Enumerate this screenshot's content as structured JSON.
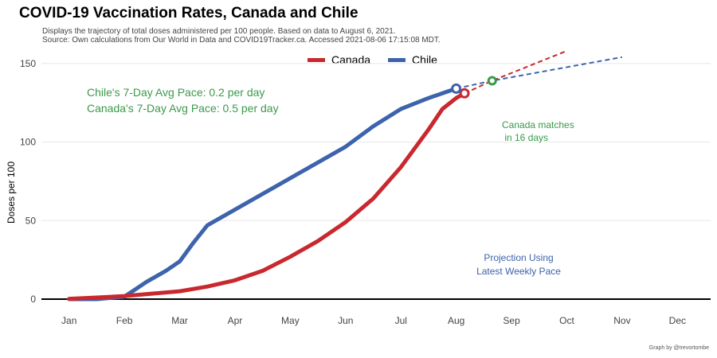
{
  "title": "COVID-19 Vaccination Rates, Canada and Chile",
  "subtitle_line1": "Displays the trajectory of total doses administered per 100 people. Based on data to August 6, 2021.",
  "subtitle_line2": "Source: Own calculations from Our World in Data and COVID19Tracker.ca. Accessed 2021-08-06 17:15:08 MDT.",
  "credit": "Graph by @trevortombe",
  "legend": [
    {
      "name": "Canada",
      "color": "#c8282e"
    },
    {
      "name": "Chile",
      "color": "#3d63ac"
    }
  ],
  "chart_data": {
    "type": "line",
    "ylabel": "Doses per 100",
    "xlabel": "",
    "ylim": [
      0,
      160
    ],
    "yticks": [
      0,
      50,
      100,
      150
    ],
    "x_tick_labels": [
      "Jan",
      "Feb",
      "Mar",
      "Apr",
      "May",
      "Jun",
      "Jul",
      "Aug",
      "Sep",
      "Oct",
      "Nov",
      "Dec"
    ],
    "x_unit": "month of 2021 (1 = Jan 1)",
    "xlim": [
      0.5,
      12.6
    ],
    "series": [
      {
        "name": "Canada",
        "color": "#c8282e",
        "points": [
          [
            1.0,
            0.2
          ],
          [
            1.5,
            1.0
          ],
          [
            2.0,
            2.0
          ],
          [
            2.5,
            3.5
          ],
          [
            3.0,
            5.0
          ],
          [
            3.5,
            8.0
          ],
          [
            4.0,
            12.0
          ],
          [
            4.5,
            18.0
          ],
          [
            5.0,
            27.0
          ],
          [
            5.5,
            37.0
          ],
          [
            6.0,
            49.0
          ],
          [
            6.5,
            64.0
          ],
          [
            7.0,
            84.0
          ],
          [
            7.5,
            108.0
          ],
          [
            7.75,
            121.0
          ],
          [
            8.0,
            128.0
          ],
          [
            8.15,
            131.0
          ]
        ],
        "projection": [
          [
            8.15,
            131.0
          ],
          [
            8.65,
            139.0
          ],
          [
            10.0,
            158.0
          ]
        ],
        "end_value": 131.0
      },
      {
        "name": "Chile",
        "color": "#3d63ac",
        "points": [
          [
            1.0,
            0.0
          ],
          [
            1.5,
            0.0
          ],
          [
            2.0,
            1.5
          ],
          [
            2.4,
            11.0
          ],
          [
            2.75,
            18.0
          ],
          [
            3.0,
            24.0
          ],
          [
            3.25,
            36.0
          ],
          [
            3.5,
            47.0
          ],
          [
            4.0,
            57.0
          ],
          [
            4.5,
            67.0
          ],
          [
            5.0,
            77.0
          ],
          [
            5.5,
            87.0
          ],
          [
            6.0,
            97.0
          ],
          [
            6.5,
            110.0
          ],
          [
            7.0,
            121.0
          ],
          [
            7.5,
            128.0
          ],
          [
            8.0,
            134.0
          ]
        ],
        "projection": [
          [
            8.0,
            134.0
          ],
          [
            8.65,
            139.0
          ],
          [
            11.0,
            154.0
          ]
        ],
        "end_value": 134.0
      }
    ],
    "crossover": {
      "x": 8.65,
      "y": 139.0,
      "color": "#3a9a49"
    },
    "annotations": {
      "chile_pace": "Chile's 7-Day Avg Pace: 0.2 per day",
      "canada_pace": "Canada's 7-Day Avg Pace: 0.5 per day",
      "matches_line1": "Canada matches",
      "matches_line2": " in 16 days",
      "projection_line1": "Projection Using",
      "projection_line2": "Latest Weekly Pace"
    },
    "colors": {
      "pace_text": "#3a9a49",
      "projection_text": "#3d63ac",
      "grid": "#e8e8e8",
      "axis": "#000000"
    },
    "grid": true,
    "legend_position": "top"
  }
}
